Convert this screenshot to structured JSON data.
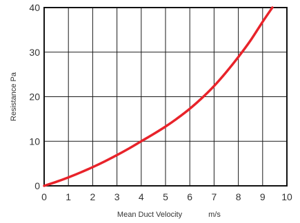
{
  "chart_data": {
    "type": "line",
    "xlabel": "Mean Duct Velocity",
    "xunit": "m/s",
    "ylabel": "Resistance Pa",
    "xlim": [
      0,
      10
    ],
    "ylim": [
      0,
      40
    ],
    "grid": true,
    "legend": "none",
    "x_ticks": [
      "0",
      "1",
      "2",
      "3",
      "4",
      "5",
      "6",
      "7",
      "8",
      "9",
      "10"
    ],
    "y_ticks": [
      "0",
      "10",
      "20",
      "30",
      "40"
    ],
    "series": [
      {
        "color": "#e8232a",
        "x": [
          0,
          0.5,
          1,
          1.5,
          2,
          2.5,
          3,
          3.5,
          4,
          4.5,
          5,
          5.5,
          6,
          6.5,
          7,
          7.5,
          8,
          8.5,
          9,
          9.4
        ],
        "y": [
          0,
          0.9,
          1.9,
          3.0,
          4.2,
          5.5,
          6.9,
          8.4,
          10.0,
          11.6,
          13.3,
          15.2,
          17.3,
          19.7,
          22.4,
          25.5,
          28.9,
          32.6,
          36.8,
          40.0
        ]
      }
    ]
  }
}
